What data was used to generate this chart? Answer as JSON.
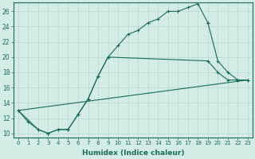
{
  "title": "",
  "xlabel": "Humidex (Indice chaleur)",
  "ylabel": "",
  "background_color": "#d4ece6",
  "grid_color": "#b8d8d0",
  "line_color": "#1a6b5a",
  "xlim": [
    -0.5,
    23.5
  ],
  "ylim": [
    9.5,
    27.2
  ],
  "xticks": [
    0,
    1,
    2,
    3,
    4,
    5,
    6,
    7,
    8,
    9,
    10,
    11,
    12,
    13,
    14,
    15,
    16,
    17,
    18,
    19,
    20,
    21,
    22,
    23
  ],
  "yticks": [
    10,
    12,
    14,
    16,
    18,
    20,
    22,
    24,
    26
  ],
  "series1_x": [
    0,
    1,
    2,
    3,
    4,
    5,
    6,
    7,
    8,
    9,
    10,
    11,
    12,
    13,
    14,
    15,
    16,
    17,
    18,
    19
  ],
  "series1_y": [
    13,
    11.5,
    10.5,
    10,
    10.5,
    10.5,
    12.5,
    14.5,
    17.5,
    20,
    21.5,
    23,
    23.5,
    24.5,
    25,
    26,
    26,
    26.5,
    27,
    24.5
  ],
  "series2_x": [
    19,
    20,
    21,
    22,
    23
  ],
  "series2_y": [
    24.5,
    19.5,
    18.0,
    17.0,
    17.0
  ],
  "series3_x": [
    0,
    2,
    3,
    4,
    5,
    6,
    7,
    8,
    9,
    19,
    20,
    21,
    22,
    23
  ],
  "series3_y": [
    13,
    10.5,
    10,
    10.5,
    10.5,
    12.5,
    14.5,
    17.5,
    20,
    19.5,
    18.0,
    17.0,
    17.0,
    17.0
  ],
  "series4_x": [
    0,
    23
  ],
  "series4_y": [
    13,
    17
  ]
}
